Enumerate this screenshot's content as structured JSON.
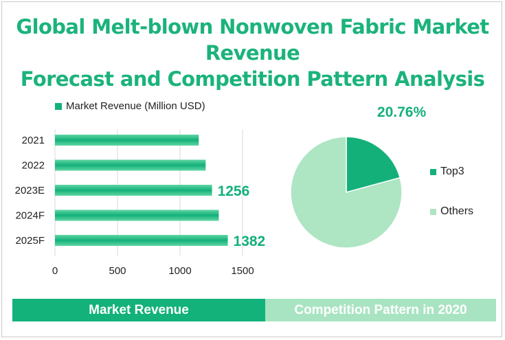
{
  "title_line1": "Global Melt-blown Nonwoven Fabric Market Revenue",
  "title_line2": "Forecast and Competition Pattern Analysis",
  "colors": {
    "accent": "#14b07a",
    "light": "#aee5c3",
    "title": "#1bb37b"
  },
  "chart_data": [
    {
      "type": "bar",
      "orientation": "horizontal",
      "legend": "Market Revenue (Million USD)",
      "categories": [
        "2021",
        "2022",
        "2023E",
        "2024F",
        "2025F"
      ],
      "values": [
        1150,
        1205,
        1256,
        1310,
        1382
      ],
      "data_labels": [
        "",
        "",
        "1256",
        "",
        "1382"
      ],
      "xticks": [
        "0",
        "500",
        "1000",
        "1500"
      ],
      "xlim": [
        0,
        1500
      ],
      "grid": "vertical"
    },
    {
      "type": "pie",
      "labels": [
        "Top3",
        "Others"
      ],
      "values": [
        20.76,
        79.24
      ],
      "data_labels": [
        "20.76%",
        ""
      ],
      "colors": [
        "#14b07a",
        "#aee5c3"
      ],
      "legend_position": "right"
    }
  ],
  "footer": {
    "left": "Market Revenue",
    "right": "Competition Pattern in 2020"
  }
}
